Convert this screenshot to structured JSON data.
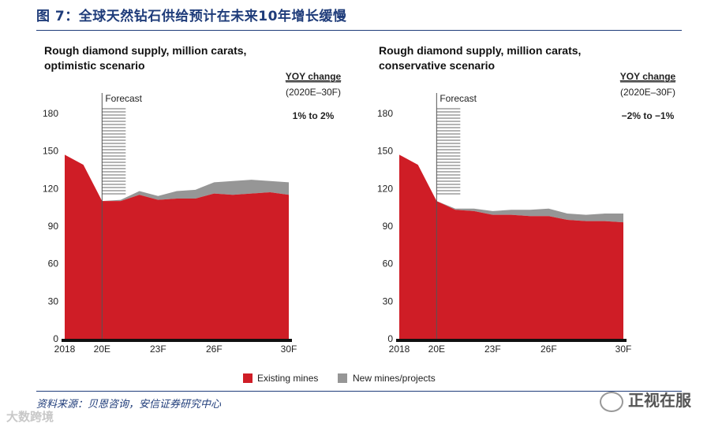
{
  "figure_title": "图 7：全球天然钻石供给预计在未来10年增长缓慢",
  "source_note": "资料来源：贝恩咨询，安信证券研究中心",
  "watermark_right": "正视在服",
  "watermark_left": "大数跨境",
  "legend": [
    {
      "label": "Existing mines",
      "color": "#cf1d26"
    },
    {
      "label": "New mines/projects",
      "color": "#969696"
    }
  ],
  "chart_data": [
    {
      "type": "area",
      "title_line1": "Rough diamond supply, million carats,",
      "title_line2": "optimistic scenario",
      "forecast_label": "Forecast",
      "yoy_header": "YOY change",
      "yoy_period": "(2020E–30F)",
      "yoy_value": "1% to 2%",
      "ylim": [
        0,
        190
      ],
      "yticks": [
        "0",
        "30",
        "60",
        "90",
        "120",
        "150",
        "180"
      ],
      "xticks": [
        {
          "x": 2018,
          "label": "2018"
        },
        {
          "x": 2020,
          "label": "20E"
        },
        {
          "x": 2023,
          "label": "23F"
        },
        {
          "x": 2026,
          "label": "26F"
        },
        {
          "x": 2030,
          "label": "30F"
        }
      ],
      "xlim": [
        2018,
        2030
      ],
      "forecast_x": 2020,
      "x": [
        2018,
        2019,
        2020,
        2021,
        2022,
        2023,
        2024,
        2025,
        2026,
        2027,
        2028,
        2029,
        2030
      ],
      "series": [
        {
          "name": "Existing mines",
          "values": [
            147,
            139,
            110,
            110,
            115,
            111,
            112,
            112,
            116,
            115,
            116,
            117,
            115
          ]
        },
        {
          "name": "New mines/projects",
          "values": [
            0,
            0,
            0,
            1,
            3,
            3,
            6,
            7,
            9,
            11,
            11,
            9,
            10
          ]
        }
      ]
    },
    {
      "type": "area",
      "title_line1": "Rough diamond supply, million carats,",
      "title_line2": "conservative scenario",
      "forecast_label": "Forecast",
      "yoy_header": "YOY change",
      "yoy_period": "(2020E–30F)",
      "yoy_value": "−2% to −1%",
      "ylim": [
        0,
        190
      ],
      "yticks": [
        "0",
        "30",
        "60",
        "90",
        "120",
        "150",
        "180"
      ],
      "xticks": [
        {
          "x": 2018,
          "label": "2018"
        },
        {
          "x": 2020,
          "label": "20E"
        },
        {
          "x": 2023,
          "label": "23F"
        },
        {
          "x": 2026,
          "label": "26F"
        },
        {
          "x": 2030,
          "label": "30F"
        }
      ],
      "xlim": [
        2018,
        2030
      ],
      "forecast_x": 2020,
      "x": [
        2018,
        2019,
        2020,
        2021,
        2022,
        2023,
        2024,
        2025,
        2026,
        2027,
        2028,
        2029,
        2030
      ],
      "series": [
        {
          "name": "Existing mines",
          "values": [
            147,
            139,
            110,
            103,
            102,
            99,
            99,
            98,
            98,
            95,
            94,
            94,
            93
          ]
        },
        {
          "name": "New mines/projects",
          "values": [
            0,
            0,
            0,
            1,
            2,
            3,
            4,
            5,
            6,
            5,
            5,
            6,
            7
          ]
        }
      ]
    }
  ]
}
